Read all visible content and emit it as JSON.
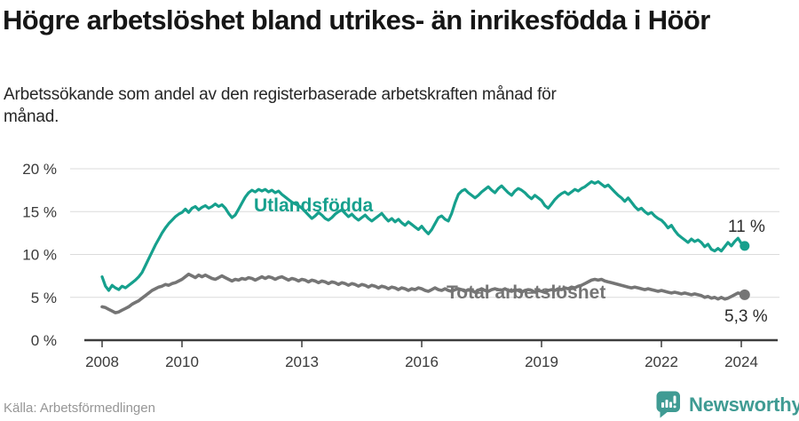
{
  "header": {
    "title": "Högre arbetslöshet bland utrikes- än inrikesfödda i Höör",
    "subtitle": "Arbetssökande som andel av den registerbaserade arbetskraften månad för månad."
  },
  "chart_data": {
    "type": "line",
    "title": "Högre arbetslöshet bland utrikes- än inrikesfödda i Höör",
    "subtitle": "Arbetssökande som andel av den registerbaserade arbetskraften månad för månad.",
    "unit": "%",
    "x_start": "2008-01",
    "x_interval": "monthly",
    "ylim": [
      0,
      20
    ],
    "grid": true,
    "y_ticks": [
      "20 %",
      "15 %",
      "10 %",
      "5 %",
      "0 %"
    ],
    "y_tick_values": [
      20,
      15,
      10,
      5,
      0
    ],
    "x_ticks": [
      "2008",
      "2010",
      "2013",
      "2016",
      "2019",
      "2022",
      "2024"
    ],
    "x_tick_years": [
      2008,
      2010,
      2013,
      2016,
      2019,
      2022,
      2024
    ],
    "series": [
      {
        "name": "Utlandsfödda",
        "color": "#16a08d",
        "end_label": "11 %",
        "end_value": 11.0,
        "values": [
          7.4,
          6.3,
          5.8,
          6.4,
          6.1,
          5.9,
          6.3,
          6.1,
          6.4,
          6.7,
          7.0,
          7.4,
          7.9,
          8.7,
          9.5,
          10.3,
          11.1,
          11.8,
          12.5,
          13.1,
          13.6,
          14.0,
          14.4,
          14.7,
          14.9,
          15.3,
          14.9,
          15.4,
          15.6,
          15.2,
          15.5,
          15.7,
          15.4,
          15.6,
          15.9,
          15.6,
          15.8,
          15.4,
          14.8,
          14.3,
          14.6,
          15.3,
          16.0,
          16.7,
          17.2,
          17.5,
          17.3,
          17.6,
          17.4,
          17.6,
          17.3,
          17.5,
          17.2,
          17.4,
          17.0,
          16.7,
          16.4,
          16.1,
          15.9,
          15.7,
          15.4,
          15.0,
          14.6,
          14.2,
          14.5,
          14.9,
          14.6,
          14.2,
          14.0,
          14.3,
          14.7,
          15.0,
          15.2,
          14.8,
          14.4,
          14.7,
          14.3,
          14.0,
          14.3,
          14.6,
          14.2,
          13.9,
          14.2,
          14.5,
          14.8,
          14.3,
          13.9,
          14.2,
          13.8,
          14.1,
          13.7,
          13.4,
          13.8,
          13.5,
          13.2,
          12.9,
          13.3,
          12.8,
          12.4,
          12.9,
          13.6,
          14.3,
          14.5,
          14.1,
          13.9,
          14.8,
          16.0,
          17.0,
          17.4,
          17.6,
          17.2,
          16.9,
          16.6,
          16.9,
          17.3,
          17.6,
          17.9,
          17.5,
          17.2,
          17.7,
          18.0,
          17.6,
          17.2,
          16.9,
          17.4,
          17.7,
          17.5,
          17.2,
          16.8,
          16.5,
          16.9,
          16.6,
          16.3,
          15.7,
          15.4,
          15.9,
          16.4,
          16.8,
          17.1,
          17.3,
          17.0,
          17.3,
          17.6,
          17.4,
          17.7,
          17.9,
          18.2,
          18.5,
          18.3,
          18.5,
          18.2,
          17.9,
          18.1,
          17.7,
          17.3,
          16.9,
          16.6,
          16.2,
          16.6,
          16.1,
          15.6,
          15.2,
          15.4,
          15.0,
          14.7,
          14.9,
          14.5,
          14.2,
          14.0,
          13.6,
          13.1,
          13.4,
          12.8,
          12.3,
          12.0,
          11.7,
          11.4,
          11.8,
          11.5,
          11.7,
          11.4,
          10.9,
          11.2,
          10.6,
          10.4,
          10.7,
          10.4,
          10.9,
          11.4,
          11.0,
          11.5,
          11.9,
          11.3,
          11.0
        ]
      },
      {
        "name": "Total arbetslöshet",
        "color": "#757575",
        "end_label": "5,3 %",
        "end_value": 5.3,
        "values": [
          3.9,
          3.8,
          3.6,
          3.4,
          3.2,
          3.3,
          3.5,
          3.7,
          3.9,
          4.2,
          4.4,
          4.6,
          4.9,
          5.2,
          5.5,
          5.8,
          6.0,
          6.2,
          6.3,
          6.5,
          6.4,
          6.6,
          6.7,
          6.9,
          7.1,
          7.4,
          7.7,
          7.5,
          7.3,
          7.6,
          7.4,
          7.6,
          7.4,
          7.2,
          7.1,
          7.3,
          7.5,
          7.3,
          7.1,
          6.9,
          7.1,
          7.0,
          7.2,
          7.1,
          7.3,
          7.2,
          7.0,
          7.2,
          7.4,
          7.2,
          7.4,
          7.3,
          7.1,
          7.3,
          7.4,
          7.2,
          7.0,
          7.2,
          7.1,
          6.9,
          7.1,
          7.0,
          6.8,
          7.0,
          6.9,
          6.7,
          6.9,
          6.8,
          6.6,
          6.8,
          6.7,
          6.5,
          6.7,
          6.6,
          6.4,
          6.6,
          6.5,
          6.3,
          6.5,
          6.4,
          6.2,
          6.4,
          6.3,
          6.1,
          6.3,
          6.2,
          6.0,
          6.2,
          6.1,
          5.9,
          6.1,
          6.0,
          5.8,
          6.0,
          5.9,
          6.1,
          6.0,
          5.8,
          5.7,
          5.9,
          6.1,
          5.9,
          5.8,
          6.0,
          5.8,
          5.7,
          5.9,
          6.0,
          5.9,
          5.7,
          5.9,
          5.8,
          5.6,
          5.8,
          6.0,
          5.8,
          5.7,
          5.9,
          6.0,
          5.9,
          5.8,
          6.0,
          5.8,
          5.7,
          5.9,
          5.8,
          5.6,
          5.8,
          5.9,
          5.8,
          5.6,
          5.8,
          5.7,
          5.6,
          5.8,
          5.9,
          5.8,
          6.0,
          5.9,
          6.1,
          6.0,
          6.2,
          6.1,
          6.3,
          6.4,
          6.6,
          6.8,
          7.0,
          7.1,
          7.0,
          7.1,
          6.9,
          6.8,
          6.7,
          6.6,
          6.5,
          6.4,
          6.3,
          6.2,
          6.1,
          6.2,
          6.1,
          6.0,
          5.9,
          6.0,
          5.9,
          5.8,
          5.7,
          5.8,
          5.7,
          5.6,
          5.5,
          5.6,
          5.5,
          5.4,
          5.5,
          5.4,
          5.3,
          5.4,
          5.3,
          5.2,
          5.0,
          5.1,
          4.9,
          5.0,
          4.8,
          5.0,
          4.8,
          4.9,
          5.1,
          5.3,
          5.5,
          5.4,
          5.3
        ]
      }
    ]
  },
  "footer": {
    "source": "Källa: Arbetsförmedlingen",
    "brand": "Newsworthy",
    "brand_color": "#3f9b93",
    "brand_icon": "newsworthy-chart-bubble-icon"
  }
}
